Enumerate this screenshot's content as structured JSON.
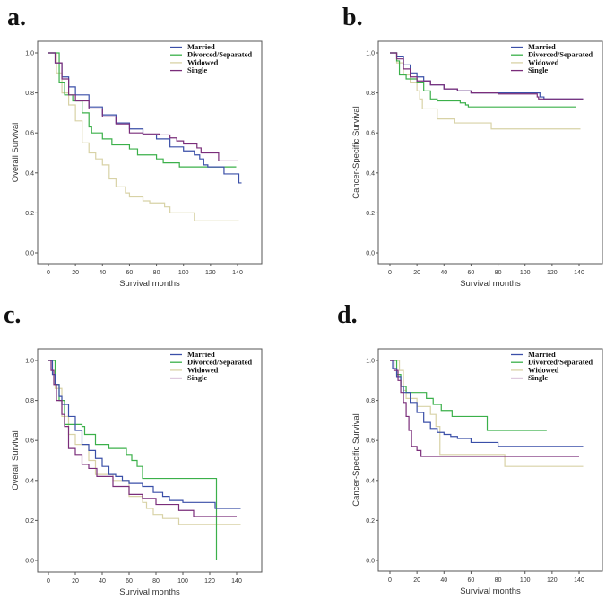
{
  "colors": {
    "Married": "#3a4fa8",
    "Divorced/Separated": "#3bb04a",
    "Widowed": "#d8d2a6",
    "Single": "#7a2d7a"
  },
  "chart_data": [
    {
      "type": "line",
      "panel_label": "a.",
      "xlabel": "Survival months",
      "ylabel": "Overall Survival",
      "xlim": [
        0,
        140
      ],
      "ylim": [
        0,
        1
      ],
      "xticks": [
        0,
        20,
        40,
        60,
        80,
        100,
        120,
        140
      ],
      "yticks": [
        "0.0",
        "0.2",
        "0.4",
        "0.6",
        "0.8",
        "1.0"
      ],
      "legend_position": "top-right",
      "step": true,
      "series": [
        {
          "name": "Married",
          "points": [
            [
              0,
              1
            ],
            [
              5,
              0.95
            ],
            [
              10,
              0.88
            ],
            [
              15,
              0.83
            ],
            [
              20,
              0.79
            ],
            [
              30,
              0.73
            ],
            [
              40,
              0.69
            ],
            [
              50,
              0.65
            ],
            [
              60,
              0.62
            ],
            [
              70,
              0.59
            ],
            [
              80,
              0.57
            ],
            [
              90,
              0.53
            ],
            [
              100,
              0.51
            ],
            [
              108,
              0.49
            ],
            [
              112,
              0.47
            ],
            [
              115,
              0.44
            ],
            [
              118,
              0.43
            ],
            [
              130,
              0.395
            ],
            [
              141,
              0.35
            ],
            [
              143,
              0.35
            ]
          ]
        },
        {
          "name": "Divorced/Separated",
          "points": [
            [
              0,
              1
            ],
            [
              8,
              0.85
            ],
            [
              12,
              0.79
            ],
            [
              18,
              0.76
            ],
            [
              25,
              0.7
            ],
            [
              30,
              0.63
            ],
            [
              32,
              0.6
            ],
            [
              40,
              0.57
            ],
            [
              47,
              0.54
            ],
            [
              60,
              0.52
            ],
            [
              66,
              0.49
            ],
            [
              80,
              0.47
            ],
            [
              85,
              0.45
            ],
            [
              97,
              0.43
            ],
            [
              139,
              0.43
            ]
          ]
        },
        {
          "name": "Widowed",
          "points": [
            [
              0,
              1
            ],
            [
              6,
              0.9
            ],
            [
              10,
              0.8
            ],
            [
              15,
              0.74
            ],
            [
              20,
              0.66
            ],
            [
              25,
              0.55
            ],
            [
              30,
              0.5
            ],
            [
              35,
              0.47
            ],
            [
              40,
              0.44
            ],
            [
              45,
              0.37
            ],
            [
              50,
              0.33
            ],
            [
              57,
              0.3
            ],
            [
              60,
              0.28
            ],
            [
              70,
              0.26
            ],
            [
              75,
              0.25
            ],
            [
              86,
              0.23
            ],
            [
              90,
              0.2
            ],
            [
              108,
              0.16
            ],
            [
              141,
              0.16
            ]
          ]
        },
        {
          "name": "Single",
          "points": [
            [
              0,
              1
            ],
            [
              5,
              0.95
            ],
            [
              10,
              0.87
            ],
            [
              15,
              0.79
            ],
            [
              20,
              0.76
            ],
            [
              30,
              0.72
            ],
            [
              40,
              0.68
            ],
            [
              50,
              0.645
            ],
            [
              60,
              0.6
            ],
            [
              70,
              0.595
            ],
            [
              82,
              0.59
            ],
            [
              90,
              0.575
            ],
            [
              95,
              0.56
            ],
            [
              100,
              0.545
            ],
            [
              110,
              0.525
            ],
            [
              113,
              0.5
            ],
            [
              126,
              0.46
            ],
            [
              140,
              0.46
            ]
          ]
        }
      ]
    },
    {
      "type": "line",
      "panel_label": "b.",
      "xlabel": "Survival months",
      "ylabel": "Cancer-Specific Survival",
      "xlim": [
        0,
        140
      ],
      "ylim": [
        0,
        1
      ],
      "xticks": [
        0,
        20,
        40,
        60,
        80,
        100,
        120,
        140
      ],
      "yticks": [
        "0.0",
        "0.2",
        "0.4",
        "0.6",
        "0.8",
        "1.0"
      ],
      "legend_position": "top-right",
      "step": true,
      "series": [
        {
          "name": "Married",
          "points": [
            [
              0,
              1
            ],
            [
              5,
              0.98
            ],
            [
              10,
              0.94
            ],
            [
              15,
              0.9
            ],
            [
              20,
              0.88
            ],
            [
              25,
              0.86
            ],
            [
              30,
              0.84
            ],
            [
              40,
              0.82
            ],
            [
              50,
              0.81
            ],
            [
              60,
              0.8
            ],
            [
              110,
              0.8
            ],
            [
              111,
              0.78
            ],
            [
              114,
              0.77
            ],
            [
              143,
              0.77
            ]
          ]
        },
        {
          "name": "Divorced/Separated",
          "points": [
            [
              0,
              1
            ],
            [
              5,
              0.96
            ],
            [
              7,
              0.89
            ],
            [
              12,
              0.87
            ],
            [
              20,
              0.85
            ],
            [
              25,
              0.81
            ],
            [
              30,
              0.77
            ],
            [
              35,
              0.76
            ],
            [
              52,
              0.75
            ],
            [
              56,
              0.74
            ],
            [
              58,
              0.73
            ],
            [
              138,
              0.73
            ]
          ]
        },
        {
          "name": "Widowed",
          "points": [
            [
              0,
              1
            ],
            [
              5,
              0.95
            ],
            [
              10,
              0.89
            ],
            [
              15,
              0.85
            ],
            [
              20,
              0.81
            ],
            [
              22,
              0.77
            ],
            [
              24,
              0.72
            ],
            [
              35,
              0.67
            ],
            [
              48,
              0.65
            ],
            [
              75,
              0.62
            ],
            [
              141,
              0.62
            ]
          ]
        },
        {
          "name": "Single",
          "points": [
            [
              0,
              1
            ],
            [
              5,
              0.97
            ],
            [
              10,
              0.92
            ],
            [
              15,
              0.88
            ],
            [
              20,
              0.86
            ],
            [
              30,
              0.84
            ],
            [
              40,
              0.82
            ],
            [
              50,
              0.81
            ],
            [
              60,
              0.8
            ],
            [
              80,
              0.795
            ],
            [
              109,
              0.78
            ],
            [
              110,
              0.77
            ],
            [
              143,
              0.77
            ]
          ]
        }
      ]
    },
    {
      "type": "line",
      "panel_label": "c.",
      "xlabel": "Survival months",
      "ylabel": "Overall Survival",
      "xlim": [
        0,
        140
      ],
      "ylim": [
        0,
        1
      ],
      "xticks": [
        0,
        20,
        40,
        60,
        80,
        100,
        120,
        140
      ],
      "yticks": [
        "0.0",
        "0.2",
        "0.4",
        "0.6",
        "0.8",
        "1.0"
      ],
      "legend_position": "top-right",
      "step": true,
      "series": [
        {
          "name": "Married",
          "points": [
            [
              0,
              1
            ],
            [
              3,
              0.93
            ],
            [
              5,
              0.88
            ],
            [
              8,
              0.82
            ],
            [
              10,
              0.78
            ],
            [
              15,
              0.72
            ],
            [
              20,
              0.65
            ],
            [
              25,
              0.58
            ],
            [
              30,
              0.55
            ],
            [
              35,
              0.51
            ],
            [
              40,
              0.47
            ],
            [
              45,
              0.43
            ],
            [
              50,
              0.42
            ],
            [
              55,
              0.4
            ],
            [
              60,
              0.385
            ],
            [
              70,
              0.37
            ],
            [
              78,
              0.34
            ],
            [
              85,
              0.32
            ],
            [
              90,
              0.3
            ],
            [
              100,
              0.29
            ],
            [
              124,
              0.26
            ],
            [
              143,
              0.26
            ]
          ]
        },
        {
          "name": "Divorced/Separated",
          "points": [
            [
              0,
              1
            ],
            [
              5,
              0.88
            ],
            [
              8,
              0.8
            ],
            [
              12,
              0.68
            ],
            [
              25,
              0.67
            ],
            [
              27,
              0.63
            ],
            [
              35,
              0.58
            ],
            [
              45,
              0.56
            ],
            [
              58,
              0.53
            ],
            [
              62,
              0.5
            ],
            [
              66,
              0.47
            ],
            [
              70,
              0.41
            ],
            [
              125,
              0.41
            ],
            [
              125,
              0
            ]
          ]
        },
        {
          "name": "Widowed",
          "points": [
            [
              0,
              1
            ],
            [
              5,
              0.86
            ],
            [
              10,
              0.72
            ],
            [
              15,
              0.63
            ],
            [
              20,
              0.58
            ],
            [
              30,
              0.5
            ],
            [
              35,
              0.43
            ],
            [
              48,
              0.4
            ],
            [
              60,
              0.32
            ],
            [
              70,
              0.29
            ],
            [
              73,
              0.26
            ],
            [
              78,
              0.23
            ],
            [
              85,
              0.21
            ],
            [
              97,
              0.18
            ],
            [
              143,
              0.18
            ]
          ]
        },
        {
          "name": "Single",
          "points": [
            [
              0,
              1
            ],
            [
              2,
              0.95
            ],
            [
              4,
              0.88
            ],
            [
              6,
              0.8
            ],
            [
              10,
              0.73
            ],
            [
              12,
              0.67
            ],
            [
              15,
              0.56
            ],
            [
              20,
              0.53
            ],
            [
              25,
              0.48
            ],
            [
              30,
              0.46
            ],
            [
              36,
              0.42
            ],
            [
              48,
              0.37
            ],
            [
              60,
              0.33
            ],
            [
              70,
              0.31
            ],
            [
              80,
              0.28
            ],
            [
              97,
              0.25
            ],
            [
              108,
              0.22
            ],
            [
              140,
              0.22
            ]
          ]
        }
      ]
    },
    {
      "type": "line",
      "panel_label": "d.",
      "xlabel": "Survival months",
      "ylabel": "Cancer-Specific Survival",
      "xlim": [
        0,
        140
      ],
      "ylim": [
        0,
        1
      ],
      "xticks": [
        0,
        20,
        40,
        60,
        80,
        100,
        120,
        140
      ],
      "yticks": [
        "0.0",
        "0.2",
        "0.4",
        "0.6",
        "0.8",
        "1.0"
      ],
      "legend_position": "top-right",
      "step": true,
      "series": [
        {
          "name": "Married",
          "points": [
            [
              0,
              1
            ],
            [
              2,
              0.96
            ],
            [
              5,
              0.92
            ],
            [
              8,
              0.87
            ],
            [
              10,
              0.84
            ],
            [
              15,
              0.79
            ],
            [
              20,
              0.74
            ],
            [
              25,
              0.69
            ],
            [
              30,
              0.66
            ],
            [
              35,
              0.64
            ],
            [
              40,
              0.63
            ],
            [
              45,
              0.62
            ],
            [
              50,
              0.61
            ],
            [
              60,
              0.59
            ],
            [
              80,
              0.57
            ],
            [
              143,
              0.57
            ]
          ]
        },
        {
          "name": "Divorced/Separated",
          "points": [
            [
              0,
              1
            ],
            [
              5,
              0.93
            ],
            [
              8,
              0.87
            ],
            [
              12,
              0.84
            ],
            [
              27,
              0.81
            ],
            [
              32,
              0.78
            ],
            [
              38,
              0.75
            ],
            [
              46,
              0.72
            ],
            [
              72,
              0.65
            ],
            [
              116,
              0.65
            ]
          ]
        },
        {
          "name": "Widowed",
          "points": [
            [
              0,
              1
            ],
            [
              5,
              1
            ],
            [
              7,
              0.95
            ],
            [
              10,
              0.85
            ],
            [
              12,
              0.81
            ],
            [
              20,
              0.77
            ],
            [
              30,
              0.73
            ],
            [
              34,
              0.67
            ],
            [
              37,
              0.53
            ],
            [
              85,
              0.47
            ],
            [
              143,
              0.47
            ]
          ]
        },
        {
          "name": "Single",
          "points": [
            [
              0,
              1
            ],
            [
              3,
              0.95
            ],
            [
              6,
              0.9
            ],
            [
              8,
              0.84
            ],
            [
              10,
              0.79
            ],
            [
              12,
              0.72
            ],
            [
              14,
              0.65
            ],
            [
              16,
              0.57
            ],
            [
              20,
              0.55
            ],
            [
              23,
              0.52
            ],
            [
              140,
              0.52
            ]
          ]
        }
      ]
    }
  ]
}
